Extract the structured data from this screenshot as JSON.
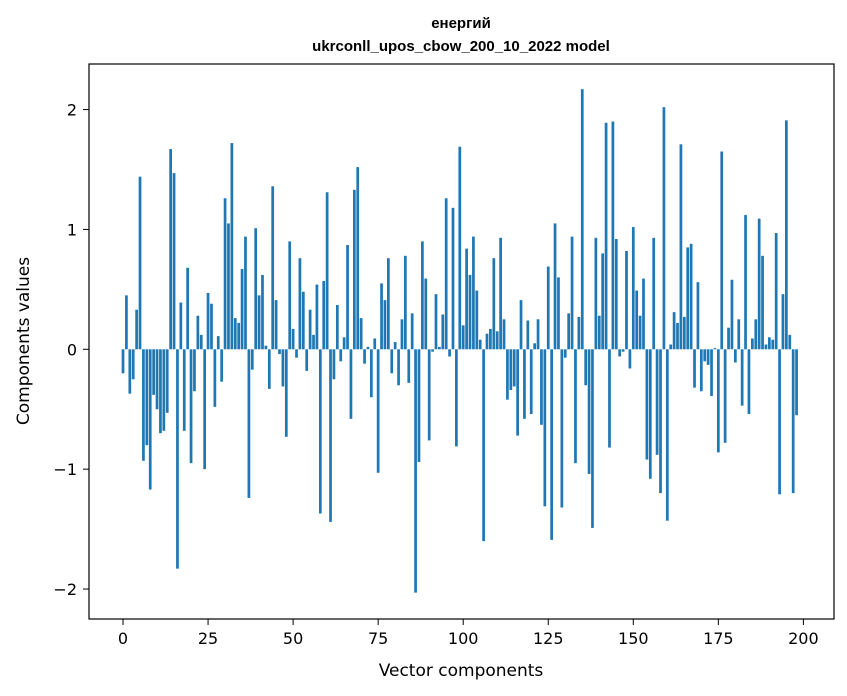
{
  "chart_data": {
    "type": "bar",
    "title_line1": "енергий",
    "title_line2": "ukrconll_upos_cbow_200_10_2022 model",
    "xlabel": "Vector components",
    "ylabel": "Components values",
    "xlim": [
      -10,
      209
    ],
    "ylim": [
      -2.25,
      2.38
    ],
    "xticks": [
      0,
      25,
      50,
      75,
      100,
      125,
      150,
      175,
      200
    ],
    "yticks": [
      -2,
      -1,
      0,
      1,
      2
    ],
    "xtick_labels": [
      "0",
      "25",
      "50",
      "75",
      "100",
      "125",
      "150",
      "175",
      "200"
    ],
    "ytick_labels": [
      "−2",
      "−1",
      "0",
      "1",
      "2"
    ],
    "bar_color": "#1f77b4",
    "grid": false,
    "values": [
      -0.2,
      0.45,
      -0.37,
      -0.25,
      0.33,
      1.44,
      -0.93,
      -0.8,
      -1.17,
      -0.38,
      -0.5,
      -0.7,
      -0.68,
      -0.53,
      1.67,
      1.47,
      -1.83,
      0.39,
      -0.68,
      0.68,
      -0.95,
      -0.35,
      0.28,
      0.12,
      -1.0,
      0.47,
      0.38,
      -0.48,
      0.11,
      -0.27,
      1.26,
      1.05,
      1.72,
      0.26,
      0.22,
      0.67,
      0.94,
      -1.24,
      -0.17,
      1.01,
      0.45,
      0.62,
      0.03,
      -0.33,
      1.36,
      0.41,
      -0.04,
      -0.31,
      -0.73,
      0.9,
      0.17,
      -0.07,
      0.76,
      0.48,
      -0.18,
      0.33,
      0.12,
      0.54,
      -1.37,
      0.57,
      1.31,
      -1.44,
      -0.25,
      0.37,
      -0.1,
      0.1,
      0.87,
      -0.58,
      1.33,
      1.52,
      0.26,
      -0.12,
      0.02,
      -0.4,
      0.09,
      -1.03,
      0.55,
      0.41,
      0.76,
      -0.2,
      0.06,
      -0.3,
      0.25,
      0.78,
      -0.28,
      0.3,
      -2.03,
      -0.94,
      0.9,
      0.59,
      -0.76,
      -0.02,
      0.46,
      0.02,
      0.29,
      1.26,
      -0.06,
      1.18,
      -0.81,
      1.69,
      0.2,
      0.84,
      0.62,
      0.94,
      0.49,
      0.08,
      -1.6,
      0.13,
      0.17,
      0.76,
      0.15,
      0.93,
      0.25,
      -0.42,
      -0.34,
      -0.31,
      -0.72,
      0.41,
      -0.58,
      0.24,
      -0.54,
      0.05,
      0.25,
      -0.63,
      -1.31,
      0.69,
      -1.59,
      1.05,
      0.6,
      -1.32,
      -0.07,
      0.3,
      0.94,
      -0.95,
      0.27,
      2.17,
      -0.3,
      -1.04,
      -1.49,
      0.93,
      0.28,
      0.8,
      1.89,
      -0.82,
      1.9,
      0.92,
      -0.06,
      -0.02,
      0.82,
      -0.16,
      1.02,
      0.49,
      0.28,
      0.59,
      -0.92,
      -1.08,
      0.93,
      -0.88,
      -1.2,
      2.02,
      -1.43,
      0.04,
      0.31,
      0.22,
      1.71,
      0.27,
      0.85,
      0.88,
      -0.32,
      0.56,
      -0.35,
      -0.1,
      -0.13,
      -0.39,
      0.01,
      -0.86,
      1.65,
      -0.78,
      0.18,
      0.58,
      -0.11,
      0.25,
      -0.47,
      1.12,
      -0.54,
      0.09,
      0.25,
      1.09,
      0.78,
      0.04,
      0.1,
      0.08,
      0.97,
      -1.21,
      0.46,
      1.91,
      0.12,
      -1.2,
      -0.55
    ]
  }
}
